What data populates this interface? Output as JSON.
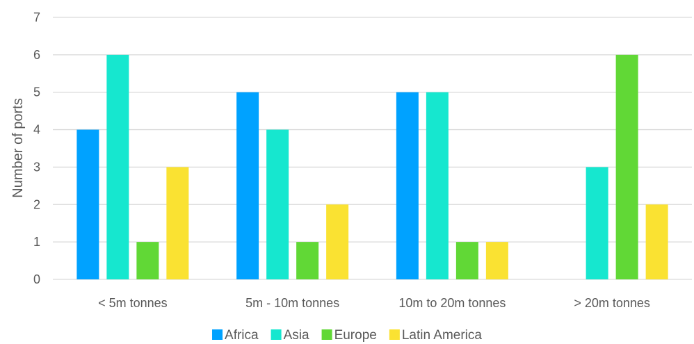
{
  "chart_data": {
    "type": "bar",
    "title": "",
    "xlabel": "",
    "ylabel": "Number of ports",
    "ylim": [
      0,
      7
    ],
    "yticks": [
      0,
      1,
      2,
      3,
      4,
      5,
      6,
      7
    ],
    "grid": true,
    "legend_position": "bottom",
    "categories": [
      "< 5m tonnes",
      "5m - 10m tonnes",
      "10m to 20m tonnes",
      "> 20m tonnes"
    ],
    "series": [
      {
        "name": "Africa",
        "color": "#00a2ff",
        "values": [
          4,
          5,
          5,
          0
        ]
      },
      {
        "name": "Asia",
        "color": "#16e7cf",
        "values": [
          6,
          4,
          5,
          3
        ]
      },
      {
        "name": "Europe",
        "color": "#61d836",
        "values": [
          1,
          1,
          1,
          6
        ]
      },
      {
        "name": "Latin America",
        "color": "#fae232",
        "values": [
          3,
          2,
          1,
          2
        ]
      }
    ]
  }
}
